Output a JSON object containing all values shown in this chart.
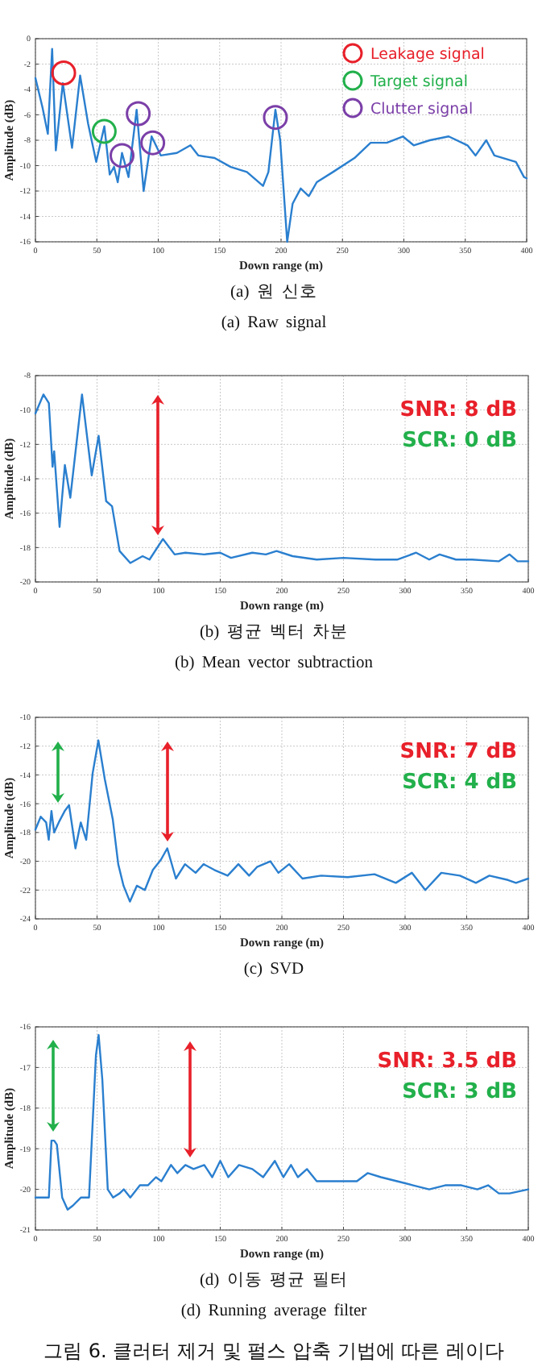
{
  "chart_data": [
    {
      "type": "line",
      "title": "(a) 원 신호",
      "subtitle": "(a) Raw signal",
      "xlabel": "Down range (m)",
      "ylabel": "Amplitude (dB)",
      "xlim": [
        0,
        400
      ],
      "ylim": [
        -16,
        0
      ],
      "xticks": [
        0,
        50,
        100,
        150,
        200,
        250,
        300,
        350,
        400
      ],
      "yticks": [
        -16,
        -14,
        -12,
        -10,
        -8,
        -6,
        -4,
        -2,
        0
      ],
      "grid": true,
      "legend": "top right",
      "series": [
        {
          "type": "line",
          "color": "#2a7fcf",
          "x": [
            0,
            5.7,
            10.1,
            13.6,
            16.6,
            22.3,
            29.8,
            36.4,
            42.9,
            49.5,
            56.1,
            60.5,
            64,
            67,
            70.5,
            75.8,
            82.4,
            88.1,
            94.6,
            102.1,
            115.2,
            126.2,
            132.7,
            145.9,
            159,
            172.2,
            185.3,
            189.7,
            195.4,
            199.3,
            205,
            209.4,
            216,
            222.6,
            229.1,
            242.3,
            259.8,
            272.9,
            286.1,
            299.2,
            308,
            321.1,
            336.5,
            351.8,
            358.4,
            367.1,
            373.7,
            391.2,
            397.8,
            400
          ],
          "values": [
            -3.1,
            -5.4,
            -7.5,
            -0.8,
            -8.8,
            -3.5,
            -8.6,
            -2.9,
            -6.7,
            -9.7,
            -6.9,
            -10.7,
            -10.1,
            -11.3,
            -9.0,
            -10.9,
            -5.6,
            -12,
            -7.7,
            -9.2,
            -9.0,
            -8.4,
            -9.2,
            -9.4,
            -10.1,
            -10.5,
            -11.6,
            -10.5,
            -5.6,
            -8.0,
            -16,
            -13.0,
            -11.8,
            -12.4,
            -11.3,
            -10.5,
            -9.4,
            -8.2,
            -8.2,
            -7.7,
            -8.4,
            -8.0,
            -7.7,
            -8.4,
            -9.2,
            -8.0,
            -9.2,
            -9.7,
            -10.9,
            -11.0
          ]
        },
        {
          "type": "scatter",
          "name": "Leakage signal",
          "color": "#e8202a",
          "marker": "circle",
          "x": [
            23
          ],
          "values": [
            -2.7
          ]
        },
        {
          "type": "scatter",
          "name": "Target signal",
          "color": "#22b04b",
          "marker": "circle",
          "x": [
            56
          ],
          "values": [
            -7.3
          ]
        },
        {
          "type": "scatter",
          "name": "Clutter signal",
          "color": "#7b3fa8",
          "marker": "circle",
          "x": [
            70.5,
            83.7,
            95.5,
            195.4
          ],
          "values": [
            -9.2,
            -5.9,
            -8.2,
            -6.2
          ]
        }
      ]
    },
    {
      "type": "line",
      "title": "(b) 평균 벡터 차분",
      "subtitle": "(b) Mean vector subtraction",
      "xlabel": "Down range (m)",
      "ylabel": "Amplitude (dB)",
      "xlim": [
        0,
        400
      ],
      "ylim": [
        -20,
        -8
      ],
      "xticks": [
        0,
        50,
        100,
        150,
        200,
        250,
        300,
        350,
        400
      ],
      "yticks": [
        -20,
        -18,
        -16,
        -14,
        -12,
        -10,
        -8
      ],
      "grid": true,
      "color": "#2a7fcf",
      "x": [
        0,
        6.5,
        10.9,
        13.9,
        15.2,
        19.6,
        23.9,
        28.3,
        37.8,
        45.7,
        51.3,
        57.4,
        62.2,
        68.3,
        77,
        87,
        92.6,
        103.5,
        113,
        121.7,
        137,
        150,
        158.7,
        176,
        187,
        195.7,
        208.7,
        228.3,
        250,
        276,
        293.5,
        309,
        319.6,
        328,
        341.3,
        354.3,
        376,
        384.8,
        391.3,
        400
      ],
      "values": [
        -10.2,
        -9.1,
        -9.6,
        -13.3,
        -12.4,
        -16.8,
        -13.2,
        -15.1,
        -9.1,
        -13.8,
        -11.5,
        -15.3,
        -15.6,
        -18.2,
        -18.9,
        -18.5,
        -18.7,
        -17.5,
        -18.4,
        -18.3,
        -18.4,
        -18.3,
        -18.6,
        -18.3,
        -18.4,
        -18.2,
        -18.5,
        -18.7,
        -18.6,
        -18.7,
        -18.7,
        -18.3,
        -18.7,
        -18.4,
        -18.7,
        -18.7,
        -18.8,
        -18.4,
        -18.8,
        -18.8
      ],
      "annotations": [
        "SNR: 8 dB",
        "SCR: 0 dB"
      ]
    },
    {
      "type": "line",
      "title": "(c) SVD",
      "xlabel": "Down range (m)",
      "ylabel": "Amplitude (dB)",
      "xlim": [
        0,
        400
      ],
      "ylim": [
        -24,
        -10
      ],
      "xticks": [
        0,
        50,
        100,
        150,
        200,
        250,
        300,
        350,
        400
      ],
      "yticks": [
        -24,
        -22,
        -20,
        -18,
        -16,
        -14,
        -12,
        -10
      ],
      "grid": true,
      "color": "#2a7fcf",
      "x": [
        0,
        4.3,
        8.7,
        10.8,
        13,
        15.2,
        19.5,
        23.8,
        27.3,
        32.5,
        36.8,
        41.2,
        46.4,
        51.1,
        56.3,
        62.8,
        67.2,
        71.5,
        76.7,
        82.3,
        88.8,
        95.3,
        101.8,
        107,
        114,
        121.4,
        130,
        136.5,
        145.2,
        156,
        164.7,
        173.4,
        179.8,
        190.7,
        197.2,
        205.9,
        216.7,
        231.9,
        253.5,
        275.2,
        292.5,
        305.5,
        316.4,
        329.4,
        344.5,
        357.5,
        368.4,
        383.5,
        390,
        400
      ],
      "values": [
        -17.8,
        -16.9,
        -17.3,
        -18.5,
        -16.5,
        -18,
        -17.2,
        -16.5,
        -16.1,
        -19.1,
        -17.3,
        -18.5,
        -13.9,
        -11.6,
        -14.3,
        -17.1,
        -20.2,
        -21.7,
        -22.8,
        -21.7,
        -22,
        -20.6,
        -19.9,
        -19.1,
        -21.2,
        -20.2,
        -20.8,
        -20.2,
        -20.6,
        -21,
        -20.2,
        -21,
        -20.4,
        -20,
        -20.8,
        -20.2,
        -21.2,
        -21,
        -21.1,
        -20.9,
        -21.5,
        -20.8,
        -22,
        -20.8,
        -21,
        -21.5,
        -21,
        -21.3,
        -21.5,
        -21.2
      ],
      "annotations": [
        "SNR: 7 dB",
        "SCR: 4 dB"
      ]
    },
    {
      "type": "line",
      "title": "(d) 이동 평균 필터",
      "subtitle": "(d) Running average filter",
      "xlabel": "Down range (m)",
      "ylabel": "Amplitude (dB)",
      "xlim": [
        0,
        400
      ],
      "ylim": [
        -21,
        -16
      ],
      "xticks": [
        0,
        50,
        100,
        150,
        200,
        250,
        300,
        350,
        400
      ],
      "yticks": [
        -21,
        -20,
        -19,
        -18,
        -17,
        -16
      ],
      "grid": true,
      "color": "#2a7fcf",
      "x": [
        0,
        10.9,
        13,
        15.2,
        17.4,
        21.7,
        26.1,
        30.4,
        37,
        43.5,
        49.1,
        51.3,
        54.3,
        58.7,
        63,
        68.3,
        71.7,
        77,
        84.8,
        91.3,
        97.8,
        102.2,
        110,
        115.2,
        121.7,
        128.3,
        137,
        143.5,
        150,
        156.5,
        165.2,
        176,
        184.8,
        194.3,
        201.3,
        207.4,
        213,
        220.4,
        228.3,
        241.3,
        250,
        260.9,
        269.6,
        280.4,
        293.5,
        306.5,
        319.6,
        332.6,
        345.7,
        358.7,
        367.4,
        376.1,
        384.8,
        400
      ],
      "values": [
        -20.2,
        -20.2,
        -18.8,
        -18.8,
        -18.9,
        -20.2,
        -20.5,
        -20.4,
        -20.2,
        -20.2,
        -16.7,
        -16.2,
        -17.3,
        -20,
        -20.2,
        -20.1,
        -20,
        -20.2,
        -19.9,
        -19.9,
        -19.7,
        -19.8,
        -19.4,
        -19.6,
        -19.4,
        -19.5,
        -19.4,
        -19.7,
        -19.3,
        -19.7,
        -19.4,
        -19.5,
        -19.7,
        -19.3,
        -19.7,
        -19.4,
        -19.7,
        -19.5,
        -19.8,
        -19.8,
        -19.8,
        -19.8,
        -19.6,
        -19.7,
        -19.8,
        -19.9,
        -20,
        -19.9,
        -19.9,
        -20,
        -19.9,
        -20.1,
        -20.1,
        -20
      ],
      "annotations": [
        "SNR: 3.5 dB",
        "SCR: 3 dB",
        "그림 6. 클러터 제거 및 펄스 압축 기법에 따른 레이다"
      ]
    }
  ]
}
